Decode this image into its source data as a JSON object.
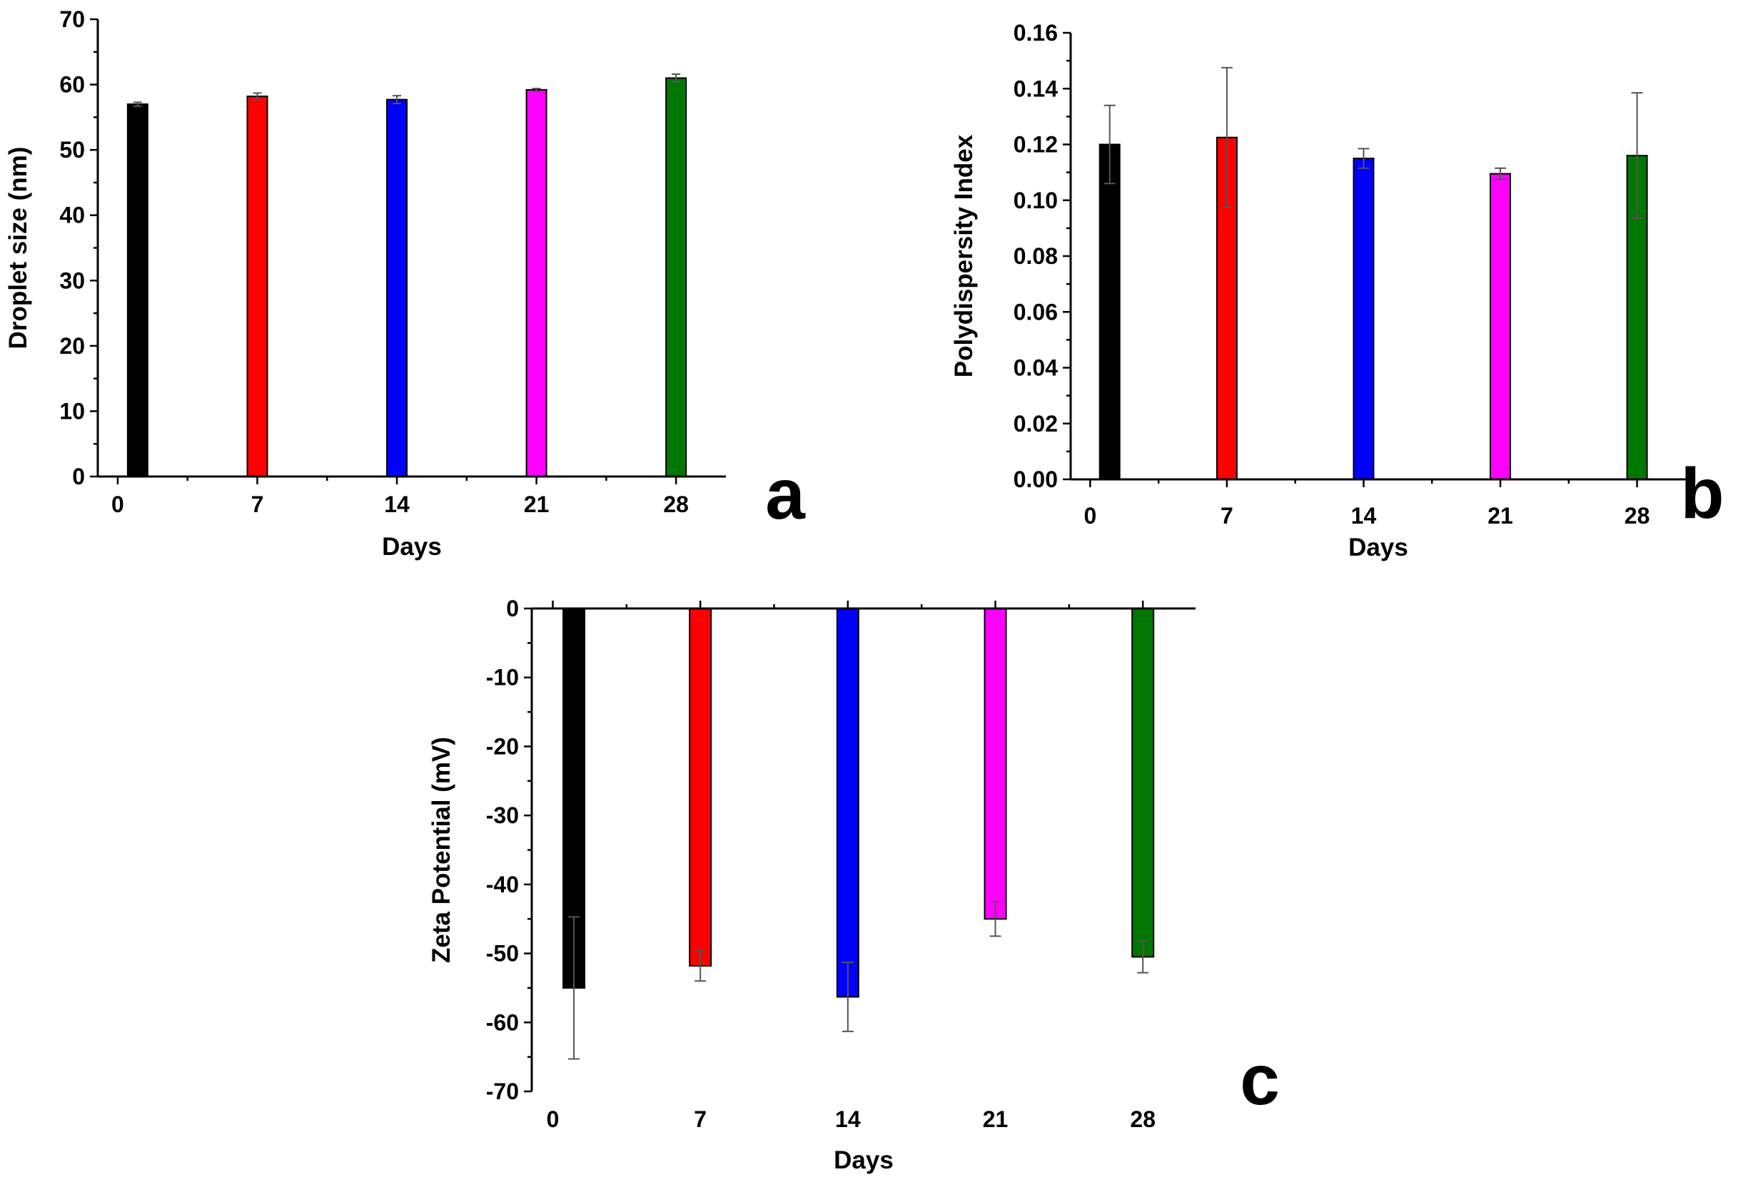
{
  "chart_data": [
    {
      "id": "a",
      "type": "bar",
      "panel_label": "a",
      "title": "",
      "xlabel": "Days",
      "ylabel": "Droplet size (nm)",
      "categories": [
        "0",
        "7",
        "14",
        "21",
        "28"
      ],
      "x": [
        1,
        7,
        14,
        21,
        28
      ],
      "x_ticks": [
        "0",
        "7",
        "14",
        "21",
        "28"
      ],
      "x_tick_values": [
        0,
        7,
        14,
        21,
        28
      ],
      "xlim": [
        -1,
        30.5
      ],
      "values": [
        57.0,
        58.2,
        57.7,
        59.2,
        61.0
      ],
      "errors": [
        0.3,
        0.5,
        0.6,
        0.2,
        0.6
      ],
      "colors": [
        "#000000",
        "#ff0000",
        "#0000ff",
        "#ff00ff",
        "#007700"
      ],
      "ylim": [
        0,
        70
      ],
      "y_ticks": [
        "0",
        "10",
        "20",
        "30",
        "40",
        "50",
        "60",
        "70"
      ],
      "y_tick_values": [
        0,
        10,
        20,
        30,
        40,
        50,
        60,
        70
      ],
      "grid": false
    },
    {
      "id": "b",
      "type": "bar",
      "panel_label": "b",
      "title": "",
      "xlabel": "Days",
      "ylabel": "Polydispersity Index",
      "categories": [
        "0",
        "7",
        "14",
        "21",
        "28"
      ],
      "x": [
        1,
        7,
        14,
        21,
        28
      ],
      "x_ticks": [
        "0",
        "7",
        "14",
        "21",
        "28"
      ],
      "x_tick_values": [
        0,
        7,
        14,
        21,
        28
      ],
      "xlim": [
        -1,
        30.5
      ],
      "values": [
        0.12,
        0.1225,
        0.115,
        0.1095,
        0.116
      ],
      "errors": [
        0.014,
        0.025,
        0.0035,
        0.002,
        0.0225
      ],
      "colors": [
        "#000000",
        "#ff0000",
        "#0000ff",
        "#ff00ff",
        "#007700"
      ],
      "ylim": [
        0,
        0.16
      ],
      "y_ticks": [
        "0.00",
        "0.02",
        "0.04",
        "0.06",
        "0.08",
        "0.10",
        "0.12",
        "0.14",
        "0.16"
      ],
      "y_tick_values": [
        0,
        0.02,
        0.04,
        0.06,
        0.08,
        0.1,
        0.12,
        0.14,
        0.16
      ],
      "grid": false
    },
    {
      "id": "c",
      "type": "bar",
      "panel_label": "c",
      "title": "",
      "xlabel": "Days",
      "ylabel": "Zeta Potential (mV)",
      "categories": [
        "0",
        "7",
        "14",
        "21",
        "28"
      ],
      "x": [
        1,
        7,
        14,
        21,
        28
      ],
      "x_ticks": [
        "0",
        "7",
        "14",
        "21",
        "28"
      ],
      "x_tick_values": [
        0,
        7,
        14,
        21,
        28
      ],
      "xlim": [
        -1,
        30.5
      ],
      "values": [
        -55.0,
        -51.8,
        -56.3,
        -45.0,
        -50.5
      ],
      "errors": [
        10.3,
        2.2,
        5.0,
        2.5,
        2.3
      ],
      "colors": [
        "#000000",
        "#ff0000",
        "#0000ff",
        "#ff00ff",
        "#007700"
      ],
      "ylim": [
        -70,
        0
      ],
      "y_ticks": [
        "0",
        "-10",
        "-20",
        "-30",
        "-40",
        "-50",
        "-60",
        "-70"
      ],
      "y_tick_values": [
        0,
        -10,
        -20,
        -30,
        -40,
        -50,
        -60,
        -70
      ],
      "grid": false
    }
  ]
}
